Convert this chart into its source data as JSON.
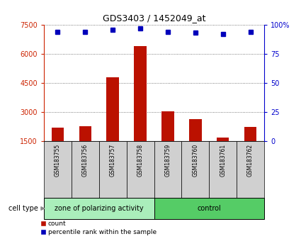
{
  "title": "GDS3403 / 1452049_at",
  "samples": [
    "GSM183755",
    "GSM183756",
    "GSM183757",
    "GSM183758",
    "GSM183759",
    "GSM183760",
    "GSM183761",
    "GSM183762"
  ],
  "counts": [
    2200,
    2280,
    4800,
    6400,
    3050,
    2650,
    1700,
    2250
  ],
  "percentile_ranks": [
    94,
    94,
    96,
    97,
    94,
    93,
    92,
    94
  ],
  "groups": [
    {
      "label": "zone of polarizing activity",
      "n": 4,
      "color": "#aaeebb"
    },
    {
      "label": "control",
      "n": 4,
      "color": "#55cc66"
    }
  ],
  "ylim_left": [
    1500,
    7500
  ],
  "ylim_right": [
    0,
    100
  ],
  "yticks_left": [
    1500,
    3000,
    4500,
    6000,
    7500
  ],
  "yticks_right": [
    0,
    25,
    50,
    75,
    100
  ],
  "bar_color": "#bb1100",
  "dot_color": "#0000bb",
  "bar_width": 0.45,
  "bg_color": "#ffffff",
  "axis_left_color": "#cc2200",
  "axis_right_color": "#0000cc",
  "cell_type_label": "cell type",
  "legend_count_label": "count",
  "legend_pct_label": "percentile rank within the sample",
  "sample_box_color": "#d0d0d0"
}
